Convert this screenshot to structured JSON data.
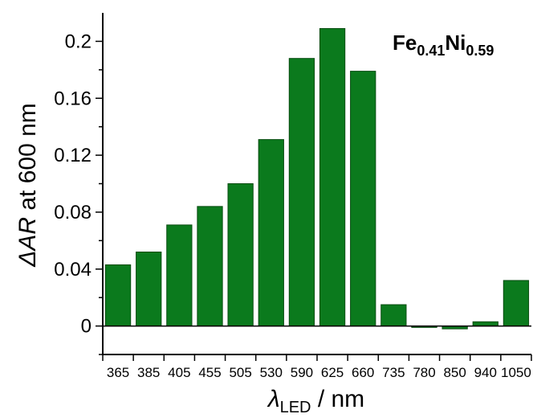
{
  "chart_data": {
    "type": "bar",
    "categories": [
      "365",
      "385",
      "405",
      "455",
      "505",
      "530",
      "590",
      "625",
      "660",
      "735",
      "780",
      "850",
      "940",
      "1050"
    ],
    "values": [
      0.043,
      0.052,
      0.071,
      0.084,
      0.1,
      0.131,
      0.188,
      0.209,
      0.179,
      0.015,
      -0.001,
      -0.002,
      0.003,
      0.032
    ],
    "ylim": [
      -0.02,
      0.22
    ],
    "yticks": [
      "0",
      "0.04",
      "0.08",
      "0.12",
      "0.16",
      "0.2"
    ],
    "ylabel": {
      "delta": "Δ",
      "var": "AR",
      "rest": " at 600 nm"
    },
    "xlabel": {
      "lambda": "λ",
      "sub": "LED",
      "rest": " / nm"
    },
    "annotation": {
      "el1": "Fe",
      "sub1": "0.41",
      "el2": "Ni",
      "sub2": "0.59"
    },
    "colors": {
      "bar_fill": "#0b7a1d",
      "bar_stroke": "#0a4d12"
    },
    "grid": false,
    "legend": "none"
  }
}
